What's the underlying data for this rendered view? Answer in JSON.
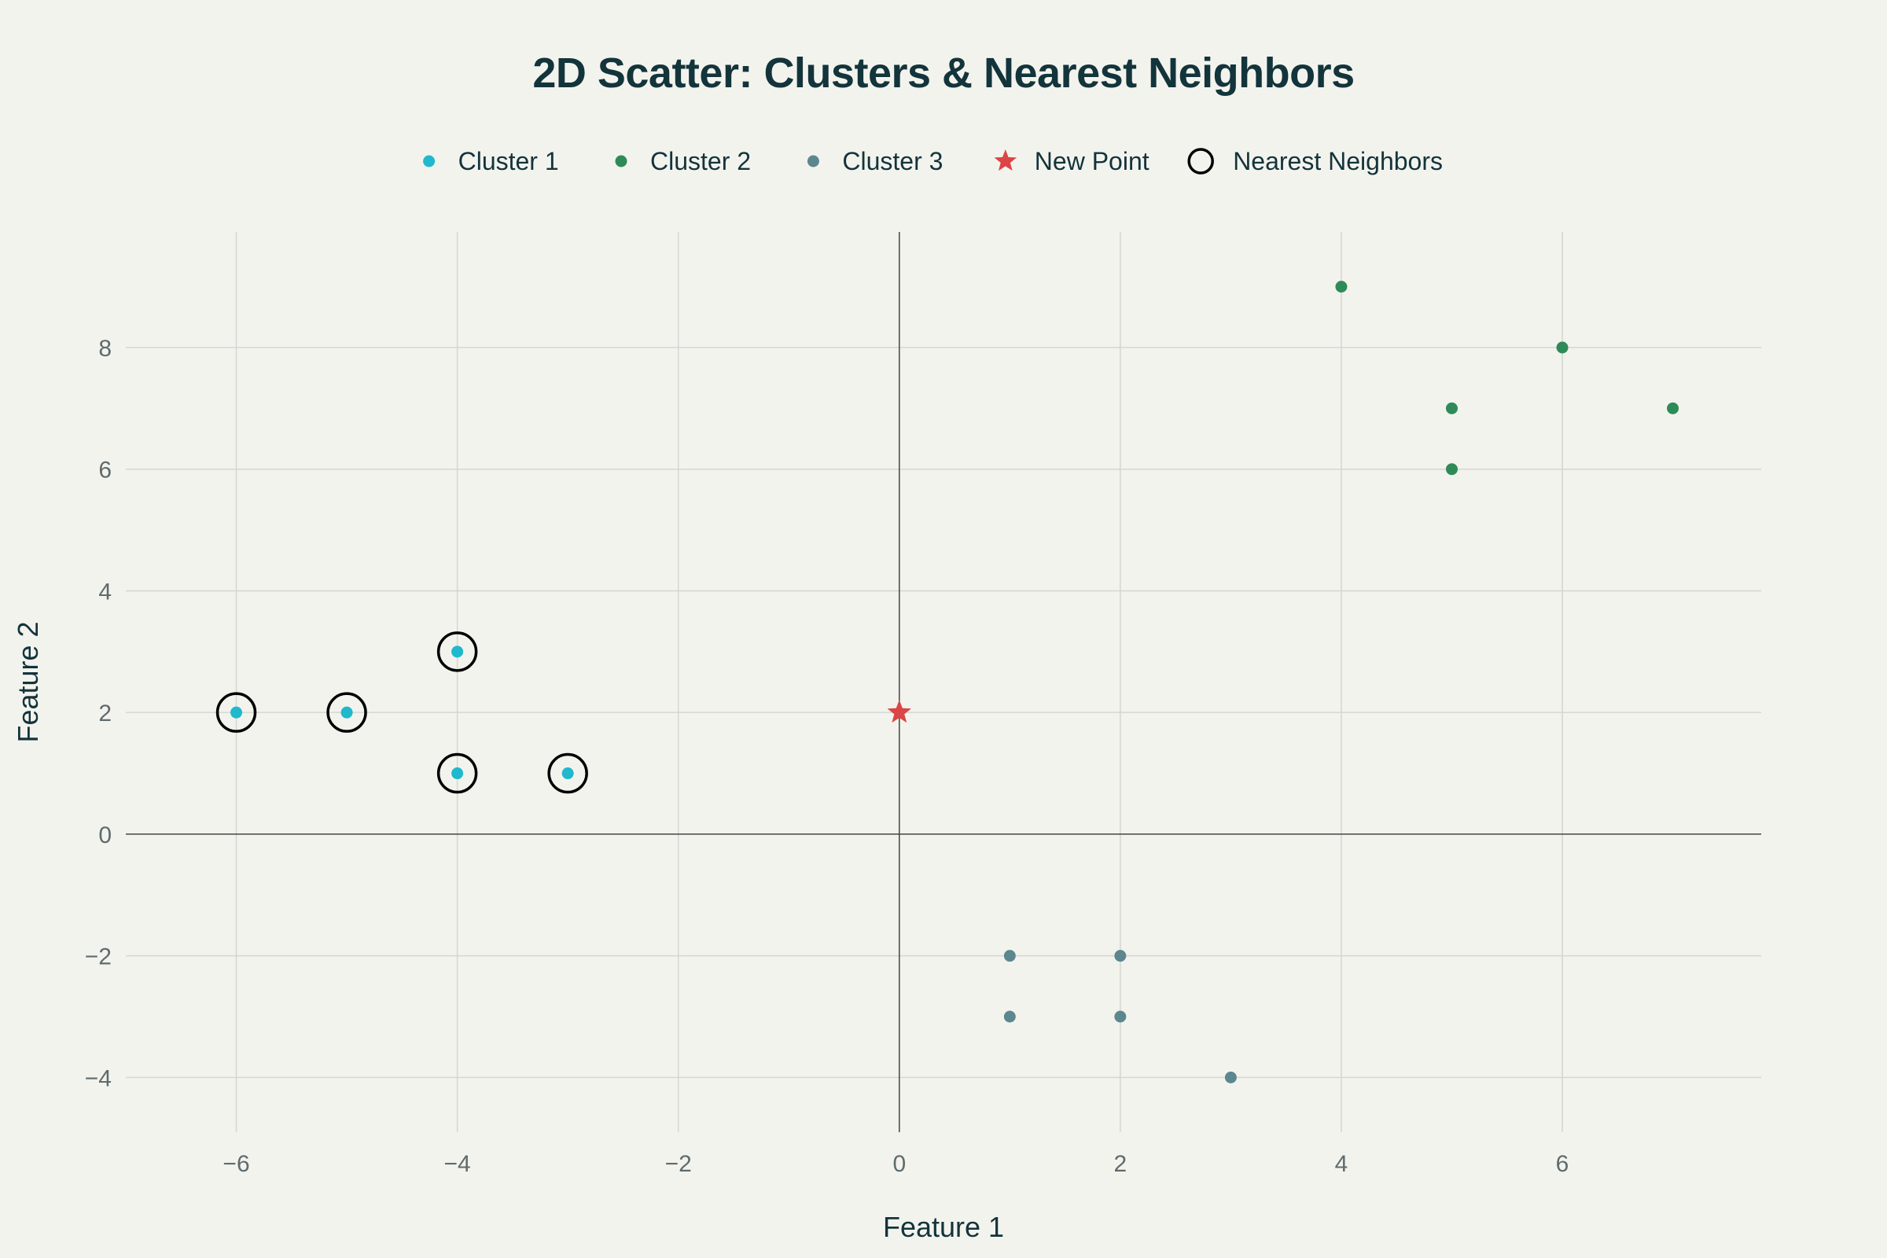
{
  "chart_data": {
    "type": "scatter",
    "title": "2D Scatter: Clusters & Nearest Neighbors",
    "xlabel": "Feature 1",
    "ylabel": "Feature 2",
    "xlim": [
      -7,
      7.8
    ],
    "ylim": [
      -4.9,
      9.9
    ],
    "x_ticks": [
      -6,
      -4,
      -2,
      0,
      2,
      4,
      6
    ],
    "y_ticks": [
      -4,
      -2,
      0,
      2,
      4,
      6,
      8
    ],
    "grid": true,
    "legend_position": "top",
    "series": [
      {
        "name": "Cluster 1",
        "marker": "circle",
        "color": "#1fb8cd",
        "x": [
          -6,
          -5,
          -4,
          -4,
          -3
        ],
        "y": [
          2,
          2,
          3,
          1,
          1
        ]
      },
      {
        "name": "Cluster 2",
        "marker": "circle",
        "color": "#2e8b57",
        "x": [
          4,
          5,
          5,
          6,
          7
        ],
        "y": [
          9,
          7,
          6,
          8,
          7
        ]
      },
      {
        "name": "Cluster 3",
        "marker": "circle",
        "color": "#5d878f",
        "x": [
          1,
          2,
          1,
          2,
          3
        ],
        "y": [
          -2,
          -2,
          -3,
          -3,
          -4
        ]
      },
      {
        "name": "New Point",
        "marker": "star",
        "color": "#db4545",
        "x": [
          0
        ],
        "y": [
          2
        ]
      },
      {
        "name": "Nearest Neighbors",
        "marker": "circle-open",
        "color": "#000000",
        "x": [
          -6,
          -5,
          -4,
          -4,
          -3
        ],
        "y": [
          2,
          2,
          3,
          1,
          1
        ]
      }
    ]
  }
}
